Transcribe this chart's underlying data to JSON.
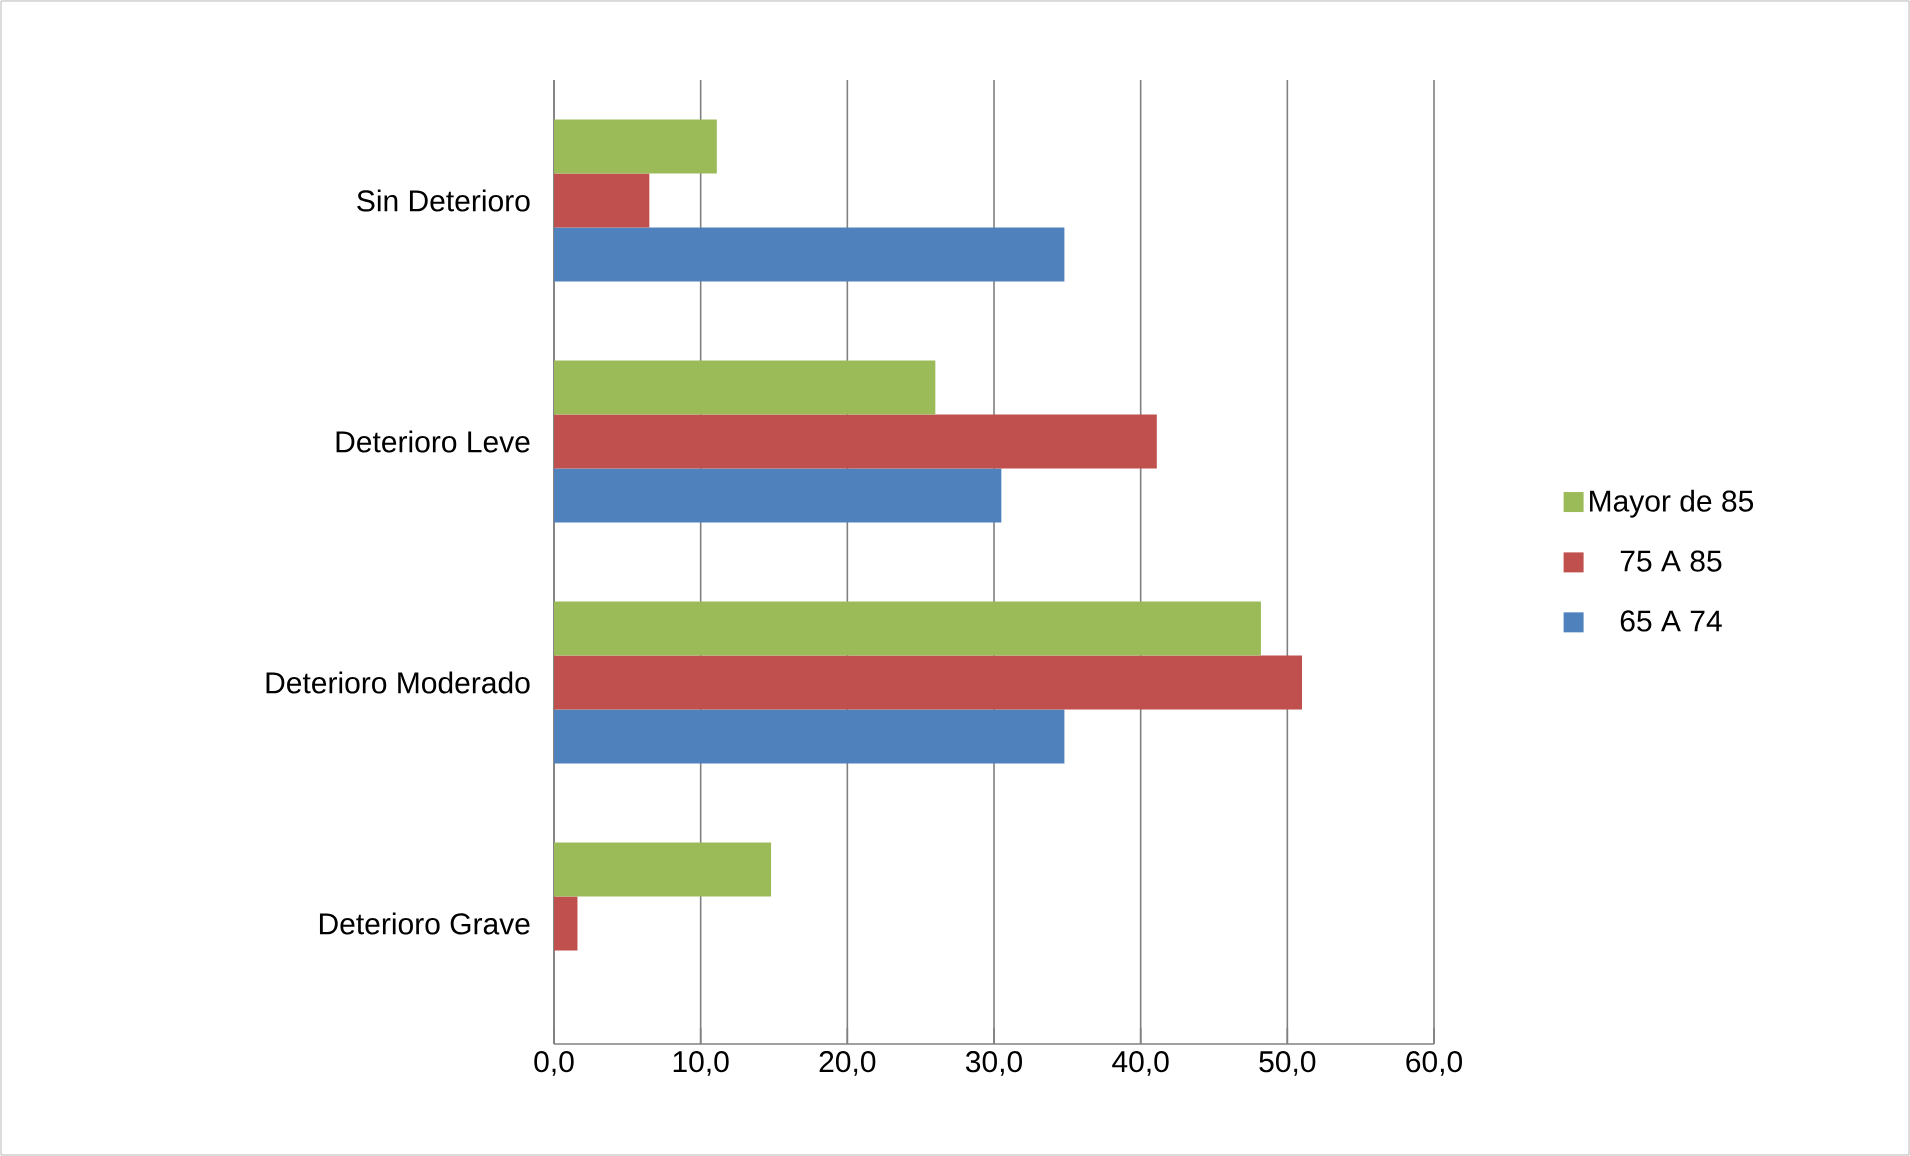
{
  "chart_data": {
    "type": "bar",
    "orientation": "horizontal",
    "categories": [
      "Sin Deterioro",
      "Deterioro Leve",
      "Deterioro Moderado",
      "Deterioro Grave"
    ],
    "series": [
      {
        "name": "65 A 74",
        "color": "#4f81bd",
        "values": [
          34.8,
          30.5,
          34.8,
          0
        ]
      },
      {
        "name": "75 A 85",
        "color": "#c0504d",
        "values": [
          6.5,
          41.1,
          51.0,
          1.6
        ]
      },
      {
        "name": "Mayor de 85",
        "color": "#9bbb59",
        "values": [
          11.1,
          26.0,
          48.2,
          14.8
        ]
      }
    ],
    "xlim": [
      0,
      60
    ],
    "xticks": [
      {
        "value": 0,
        "label": "0,0"
      },
      {
        "value": 10,
        "label": "10,0"
      },
      {
        "value": 20,
        "label": "20,0"
      },
      {
        "value": 30,
        "label": "30,0"
      },
      {
        "value": 40,
        "label": "40,0"
      },
      {
        "value": 50,
        "label": "50,0"
      },
      {
        "value": 60,
        "label": "60,0"
      }
    ],
    "grid": "x",
    "legend": "right"
  }
}
